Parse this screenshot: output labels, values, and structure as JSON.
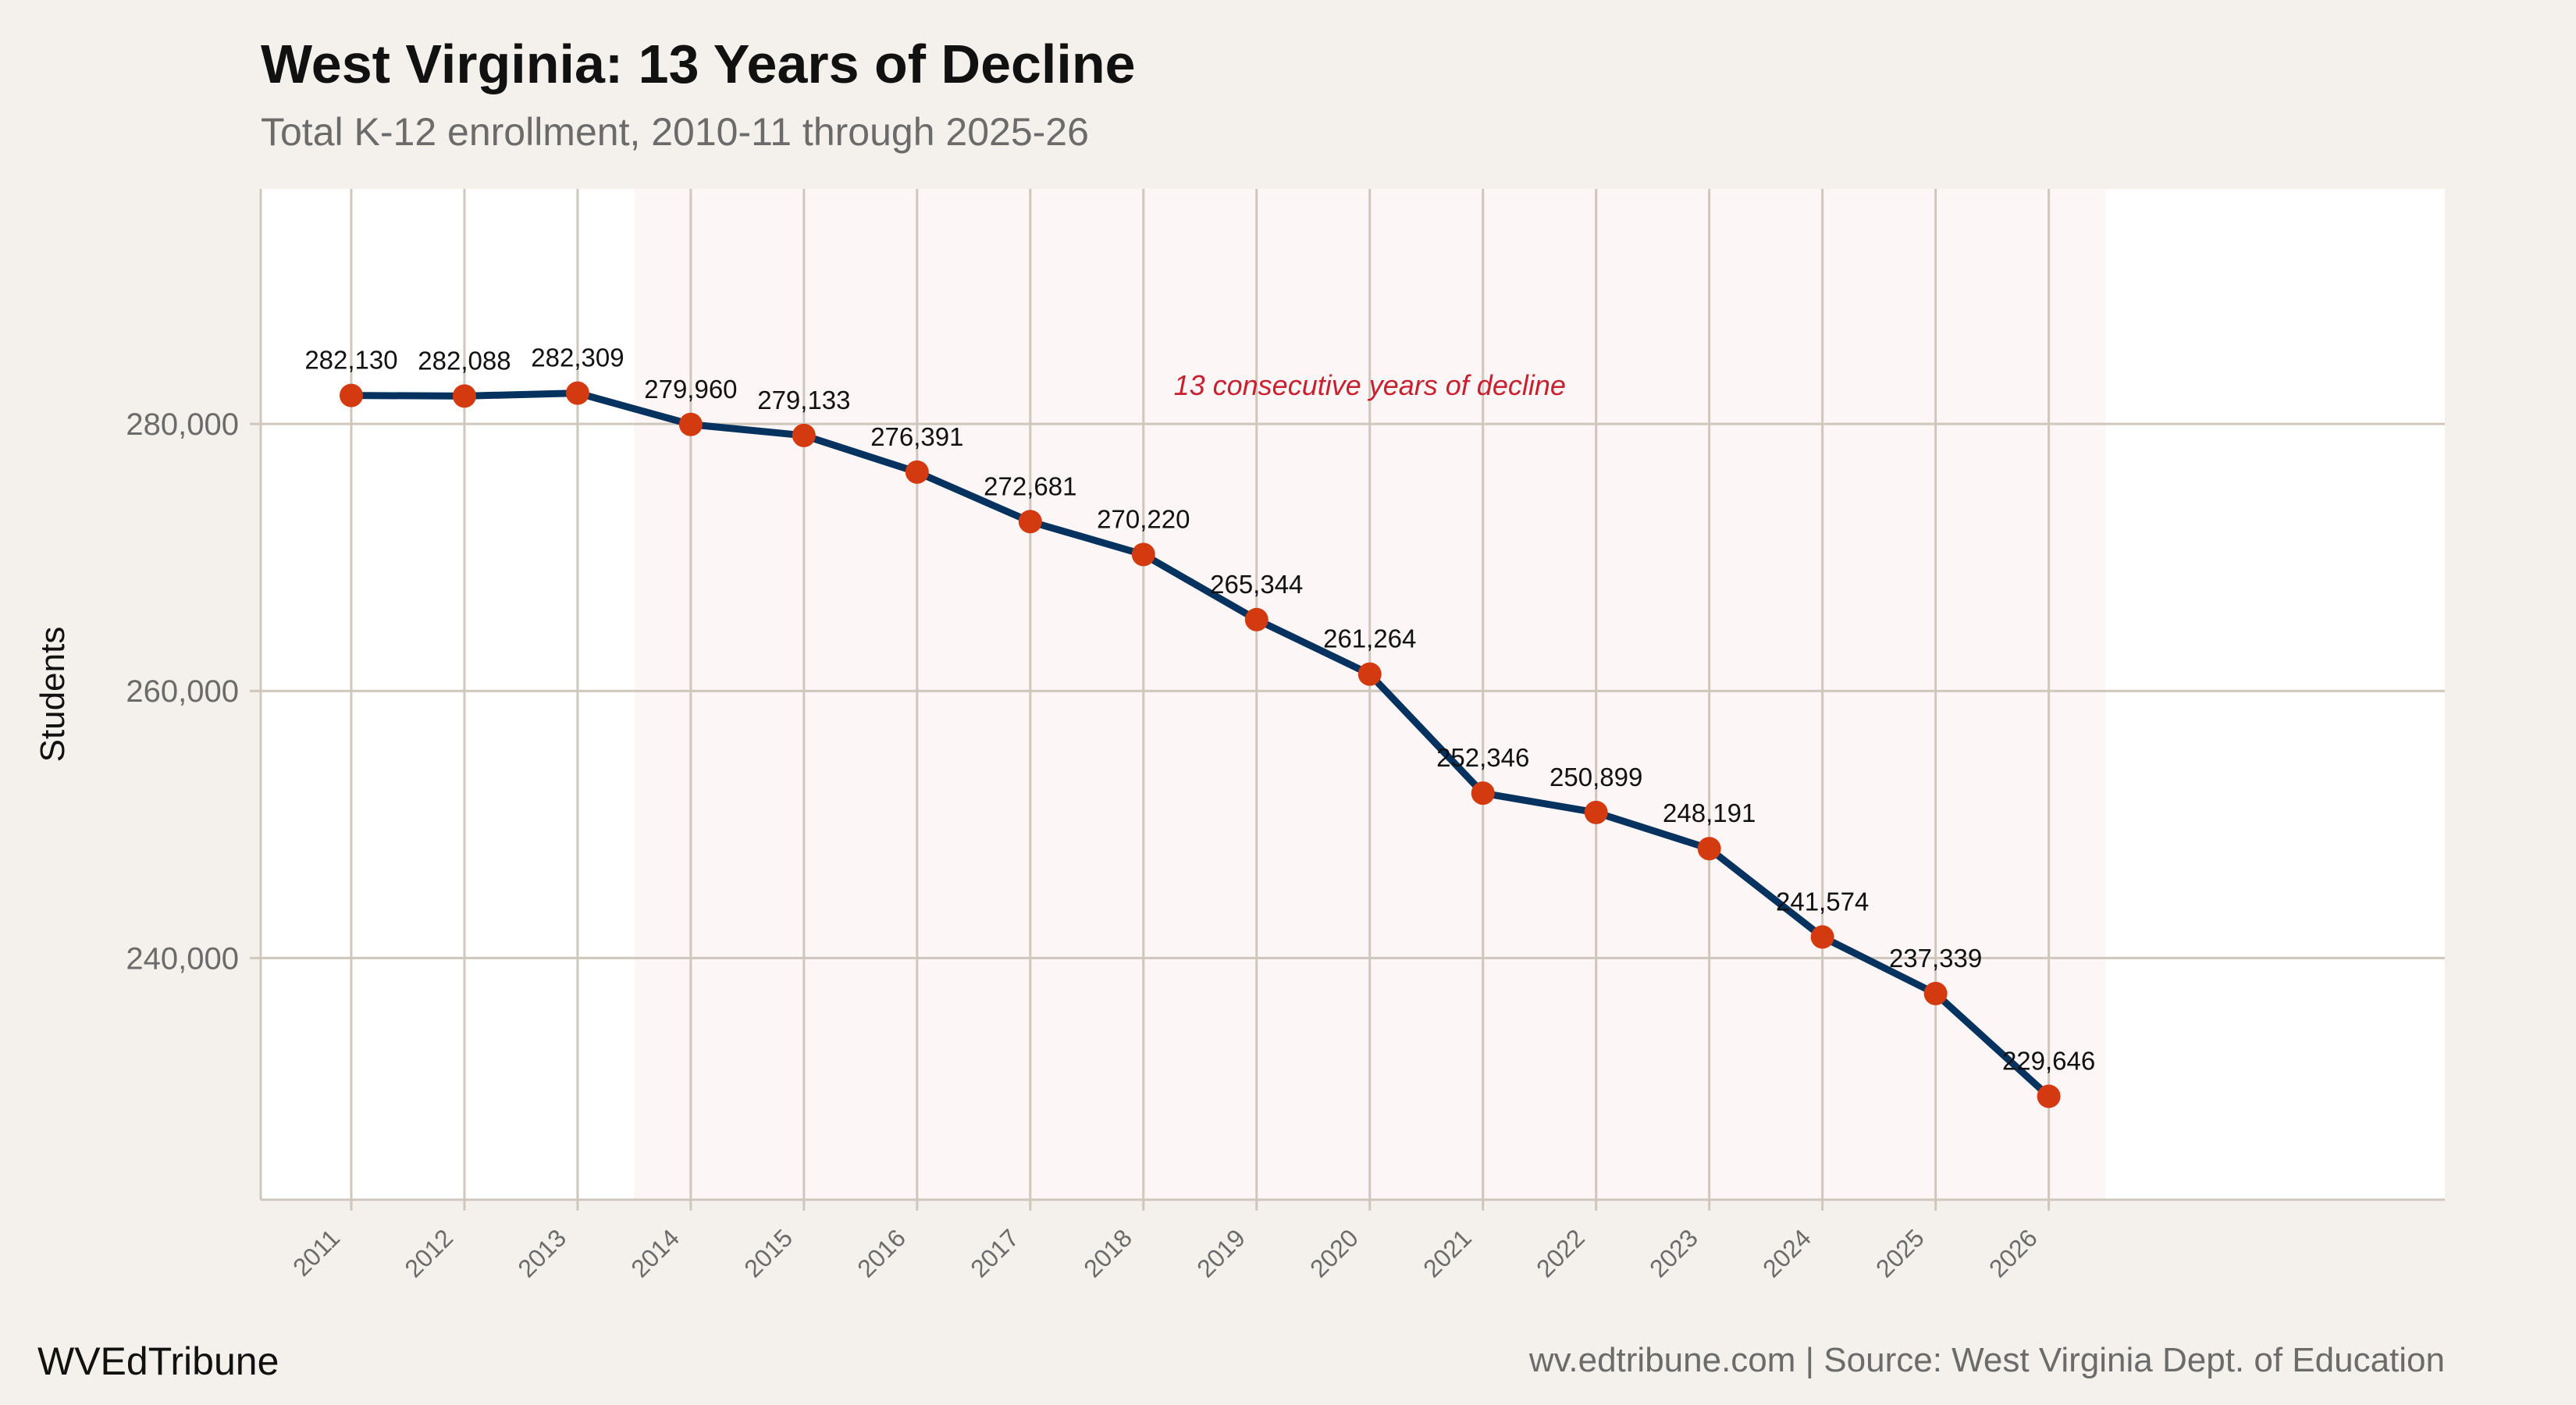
{
  "title": "West Virginia: 13 Years of Decline",
  "subtitle": "Total K-12 enrollment, 2010-11 through 2025-26",
  "brand": "WVEdTribune",
  "caption": "wv.edtribune.com | Source: West Virginia Dept. of Education",
  "colors": {
    "background": "#f4f1ec",
    "plot": "#ffffff",
    "shade": "#fcf6f6",
    "grid": "#cfc6bc",
    "line": "#06325f",
    "point": "#d43a10",
    "annotation": "#c8202f"
  },
  "chart_data": {
    "type": "line",
    "title": "West Virginia: 13 Years of Decline",
    "subtitle": "Total K-12 enrollment, 2010-11 through 2025-26",
    "xlabel": "",
    "ylabel": "Students",
    "x": [
      2011,
      2012,
      2013,
      2014,
      2015,
      2016,
      2017,
      2018,
      2019,
      2020,
      2021,
      2022,
      2023,
      2024,
      2025,
      2026
    ],
    "values": [
      282130,
      282088,
      282309,
      279960,
      279133,
      276391,
      272681,
      270220,
      265344,
      261264,
      252346,
      250899,
      248191,
      241574,
      237339,
      229646
    ],
    "data_labels": [
      "282,130",
      "282,088",
      "282,309",
      "279,960",
      "279,133",
      "276,391",
      "272,681",
      "270,220",
      "265,344",
      "261,264",
      "252,346",
      "250,899",
      "248,191",
      "241,574",
      "237,339",
      "229,646"
    ],
    "yticks": [
      240000,
      260000,
      280000
    ],
    "ytick_labels": [
      "240,000",
      "260,000",
      "280,000"
    ],
    "xlim": [
      2010.2,
      2029.5
    ],
    "ylim": [
      221900,
      297600
    ],
    "grid": true,
    "shaded_range": [
      2013.5,
      2026.5
    ],
    "annotation": {
      "text": "13 consecutive years of decline",
      "x": 2020,
      "y": 283000
    }
  }
}
